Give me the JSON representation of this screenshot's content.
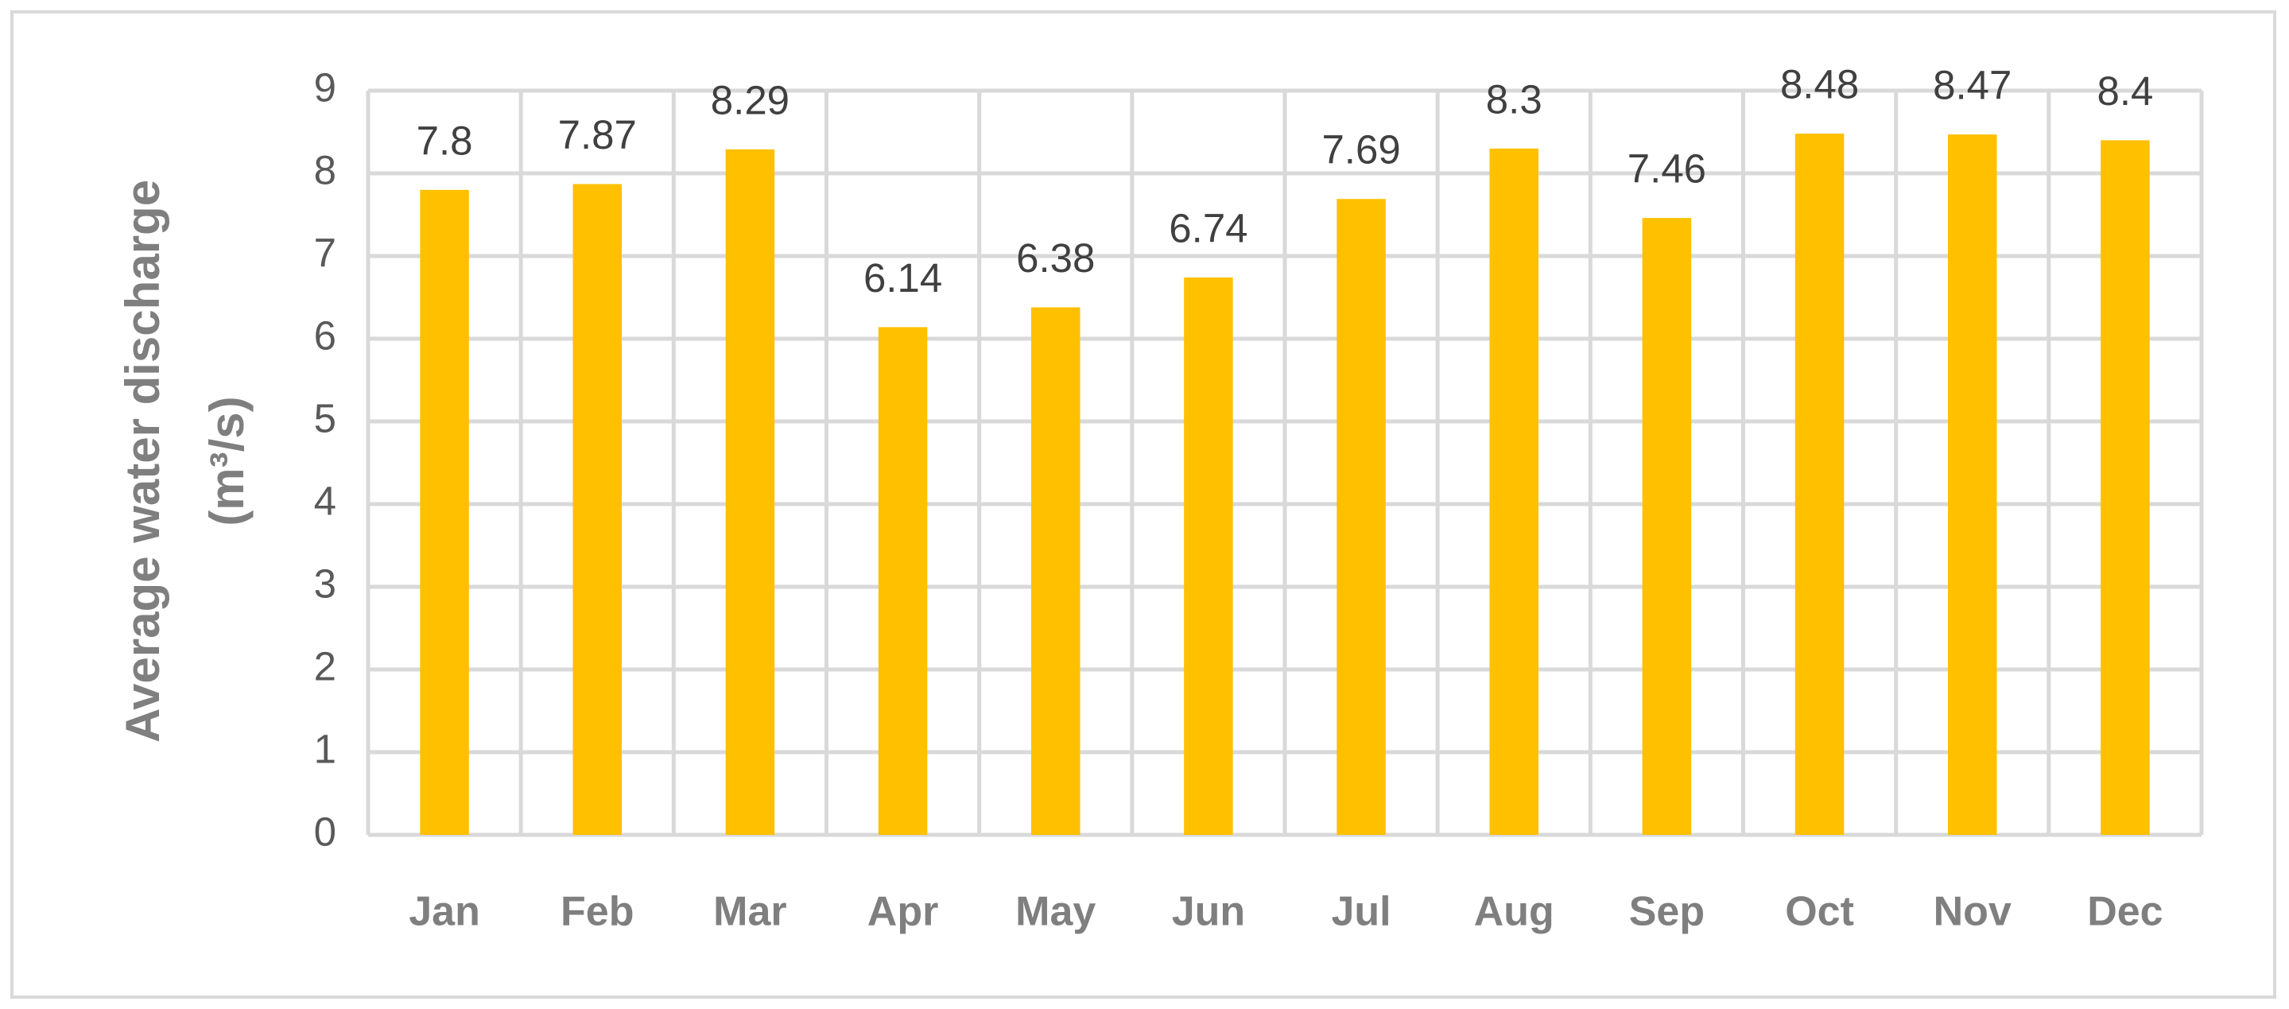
{
  "chart_data": {
    "type": "bar",
    "ylabel": [
      "Average water discharge",
      "(m³/s)"
    ],
    "categories": [
      "Jan",
      "Feb",
      "Mar",
      "Apr",
      "May",
      "Jun",
      "Jul",
      "Aug",
      "Sep",
      "Oct",
      "Nov",
      "Dec"
    ],
    "values": [
      7.8,
      7.87,
      8.29,
      6.14,
      6.38,
      6.74,
      7.69,
      8.3,
      7.46,
      8.48,
      8.47,
      8.4
    ],
    "color": "#ffc000",
    "ylim": [
      0,
      9
    ],
    "yticks": [
      0,
      1,
      2,
      3,
      4,
      5,
      6,
      7,
      8,
      9
    ],
    "grid": true
  }
}
